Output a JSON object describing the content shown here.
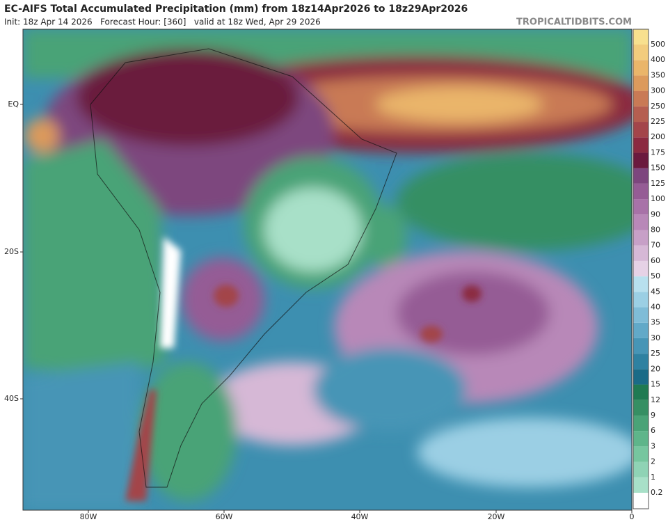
{
  "header": {
    "title": "EC-AIFS Total Accumulated Precipitation (mm) from 18z14Apr2026 to 18z29Apr2026",
    "subtitle": "Init: 18z Apr 14 2026   Forecast Hour: [360]   valid at 18z Wed, Apr 29 2026",
    "site": "TROPICALTIDBITS.COM"
  },
  "map": {
    "lat_labels": [
      "EQ",
      "20S",
      "40S"
    ],
    "lon_labels": [
      "80W",
      "60W",
      "40W",
      "20W",
      "0"
    ]
  },
  "colorbar": {
    "levels": [
      0.2,
      1,
      2,
      3,
      6,
      9,
      12,
      15,
      20,
      25,
      30,
      35,
      40,
      45,
      50,
      60,
      70,
      80,
      90,
      100,
      125,
      150,
      175,
      200,
      225,
      250,
      300,
      350,
      400,
      500
    ],
    "colors": [
      "#ffffff",
      "#a8e0c8",
      "#8fd3b5",
      "#76c69f",
      "#5eb58a",
      "#4aa377",
      "#368f63",
      "#1f7a52",
      "#1a6b87",
      "#2f81a1",
      "#4795b6",
      "#62a9c8",
      "#7fbcd7",
      "#9bcfe4",
      "#b8e0ee",
      "#e6d2e6",
      "#d6b8d6",
      "#c7a0c7",
      "#b888b8",
      "#a872a8",
      "#955c95",
      "#7d467e",
      "#6b1a3e",
      "#8b2a40",
      "#a3454a",
      "#b55e50",
      "#c97a55",
      "#dc9a5c",
      "#eab56a",
      "#f2cc7d",
      "#f8e08e"
    ]
  }
}
